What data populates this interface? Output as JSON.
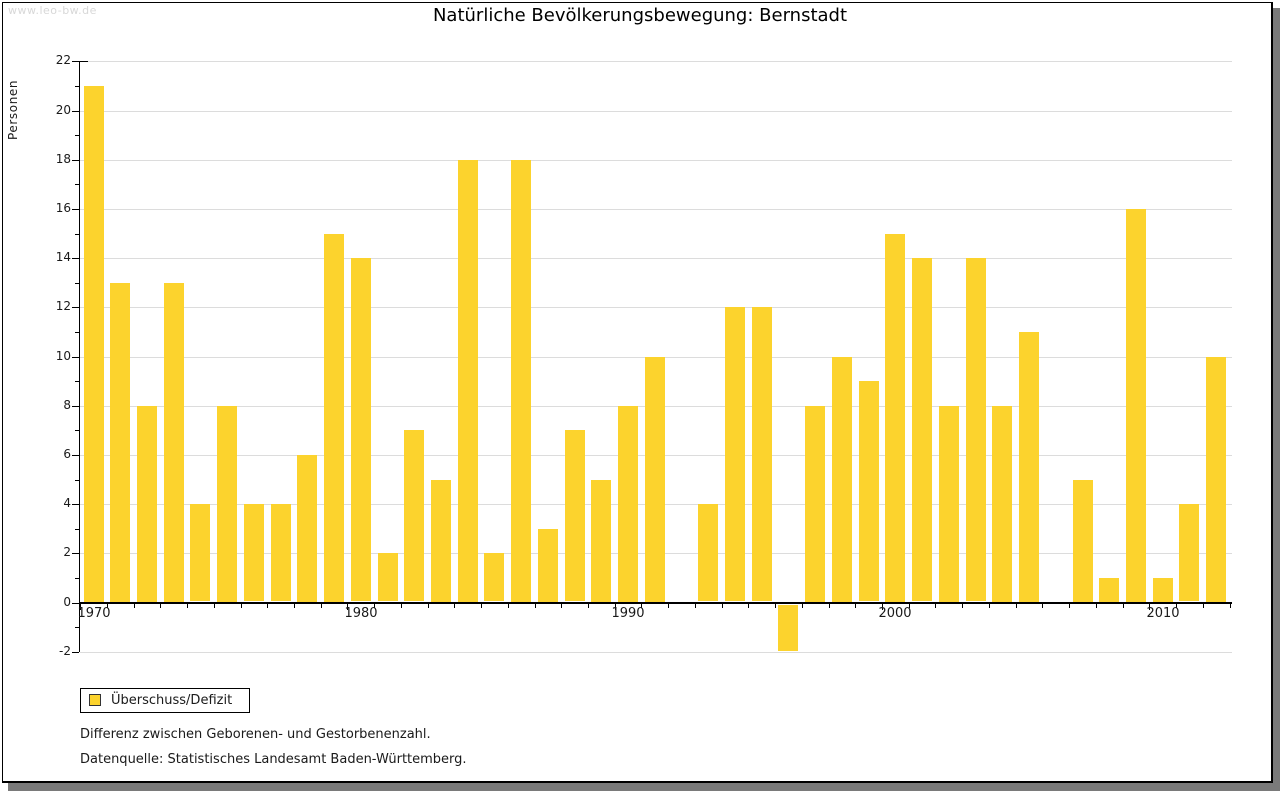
{
  "watermark": "www.leo-bw.de",
  "title": "Natürliche Bevölkerungsbewegung: Bernstadt",
  "legend": {
    "label": "Überschuss/Defizit",
    "swatch_color": "#FCD32D"
  },
  "footnotes": [
    "Differenz zwischen Geborenen- und Gestorbenenzahl.",
    "Datenquelle: Statistisches Landesamt Baden-Württemberg."
  ],
  "chart_data": {
    "type": "bar",
    "title": "Natürliche Bevölkerungsbewegung: Bernstadt",
    "series_name": "Überschuss/Defizit",
    "xlabel": "",
    "ylabel": "Personen",
    "ylim": [
      -2,
      22
    ],
    "ytick_step": 2,
    "xticks_labeled": [
      1970,
      1980,
      1990,
      2000,
      2010
    ],
    "grid": "horizontal-even-values-on",
    "legend_position": "bottom-left-outside",
    "bar_color": "#FCD32D",
    "gridline_color": "#DCDCDC",
    "categories": [
      1970,
      1971,
      1972,
      1973,
      1974,
      1975,
      1976,
      1977,
      1978,
      1979,
      1980,
      1981,
      1982,
      1983,
      1984,
      1985,
      1986,
      1987,
      1988,
      1989,
      1990,
      1991,
      1992,
      1993,
      1994,
      1995,
      1996,
      1997,
      1998,
      1999,
      2000,
      2001,
      2002,
      2003,
      2004,
      2005,
      2006,
      2007,
      2008,
      2009,
      2010,
      2011,
      2012
    ],
    "values": [
      21,
      13,
      8,
      13,
      4,
      8,
      4,
      4,
      6,
      15,
      14,
      2,
      7,
      5,
      18,
      2,
      18,
      3,
      7,
      5,
      8,
      10,
      0,
      4,
      12,
      12,
      -2,
      8,
      10,
      9,
      15,
      14,
      8,
      14,
      8,
      11,
      0,
      5,
      1,
      16,
      1,
      4,
      10
    ]
  }
}
